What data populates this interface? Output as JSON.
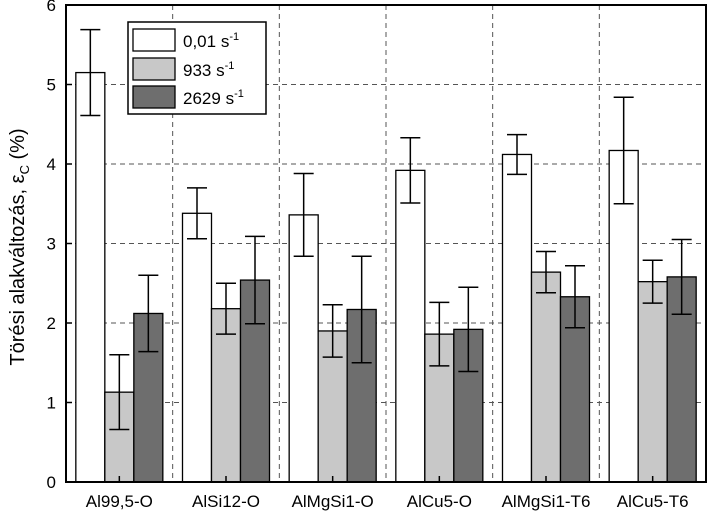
{
  "chart_data": {
    "type": "bar",
    "title": "",
    "xlabel": "",
    "ylabel": {
      "main": "Törési alakváltozás, ε",
      "subscript": "C",
      "unit": " (%)"
    },
    "ylim": [
      0,
      6
    ],
    "yticks": [
      "0",
      "1",
      "2",
      "3",
      "4",
      "5",
      "6"
    ],
    "grid": true,
    "legend_position": "top-left",
    "categories": [
      "Al99,5-O",
      "AlSi12-O",
      "AlMgSi1-O",
      "AlCu5-O",
      "AlMgSi1-T6",
      "AlCu5-T6"
    ],
    "series": [
      {
        "name_value": "0,01",
        "name_unit": "s",
        "name_exp": "-1",
        "color": "#ffffff",
        "values": [
          5.15,
          3.38,
          3.36,
          3.92,
          4.12,
          4.17
        ],
        "errors": [
          0.54,
          0.32,
          0.52,
          0.41,
          0.25,
          0.67
        ]
      },
      {
        "name_value": "933",
        "name_unit": "s",
        "name_exp": "-1",
        "color": "#c8c8c8",
        "values": [
          1.13,
          2.18,
          1.9,
          1.86,
          2.64,
          2.52
        ],
        "errors": [
          0.47,
          0.32,
          0.33,
          0.4,
          0.26,
          0.27
        ]
      },
      {
        "name_value": "2629",
        "name_unit": "s",
        "name_exp": "-1",
        "color": "#6e6e6e",
        "values": [
          2.12,
          2.54,
          2.17,
          1.92,
          2.33,
          2.58
        ],
        "errors": [
          0.48,
          0.55,
          0.67,
          0.53,
          0.39,
          0.47
        ]
      }
    ]
  }
}
